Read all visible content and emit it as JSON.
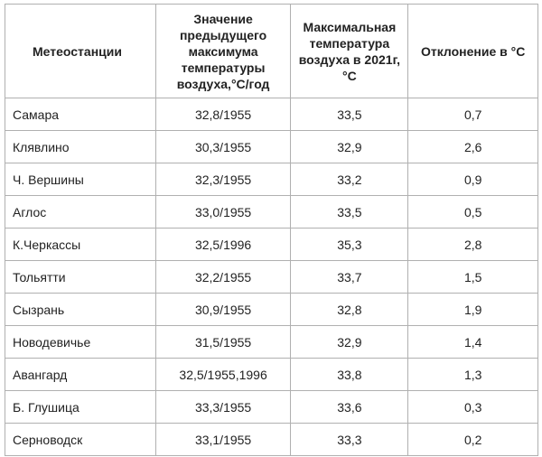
{
  "table": {
    "headers": [
      "Метеостанции",
      "Значение предыдущего максимума температуры воздуха,°С/год",
      "Максимальная температура воздуха в 2021г, °С",
      "Отклонение в °С"
    ],
    "rows": [
      [
        "Самара",
        "32,8/1955",
        "33,5",
        "0,7"
      ],
      [
        "Клявлино",
        "30,3/1955",
        "32,9",
        "2,6"
      ],
      [
        "Ч. Вершины",
        "32,3/1955",
        "33,2",
        "0,9"
      ],
      [
        "Аглос",
        "33,0/1955",
        "33,5",
        "0,5"
      ],
      [
        "К.Черкассы",
        "32,5/1996",
        "35,3",
        "2,8"
      ],
      [
        "Тольятти",
        "32,2/1955",
        "33,7",
        "1,5"
      ],
      [
        "Сызрань",
        "30,9/1955",
        "32,8",
        "1,9"
      ],
      [
        "Новодевичье",
        "31,5/1955",
        "32,9",
        "1,4"
      ],
      [
        "Авангард",
        "32,5/1955,1996",
        "33,8",
        "1,3"
      ],
      [
        "Б. Глушица",
        "33,3/1955",
        "33,6",
        "0,3"
      ],
      [
        "Серноводск",
        "33,1/1955",
        "33,3",
        "0,2"
      ]
    ]
  }
}
